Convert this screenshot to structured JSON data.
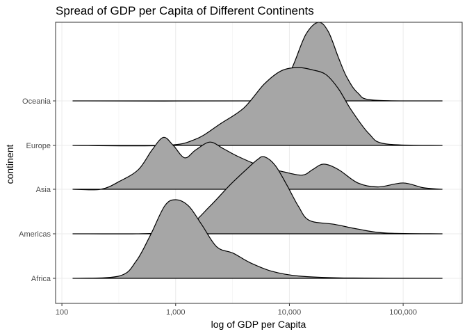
{
  "chart_data": {
    "type": "area",
    "title": "Spread of GDP per Capita of Different Continents",
    "xlabel": "log of GDP per Capita",
    "ylabel": "continent",
    "x_scale": "log10",
    "xlim": [
      88,
      330000
    ],
    "x_ticks": [
      {
        "value": 100,
        "label": "100"
      },
      {
        "value": 1000,
        "label": "1,000"
      },
      {
        "value": 10000,
        "label": "10,000"
      },
      {
        "value": 100000,
        "label": "100,000"
      }
    ],
    "categories": [
      "Africa",
      "Americas",
      "Asia",
      "Europe",
      "Oceania"
    ],
    "grid": true,
    "fill_color": "#a6a6a6",
    "line_color": "#000000",
    "series": [
      {
        "name": "Africa",
        "x": [
          125,
          320,
          450,
          600,
          800,
          1000,
          1300,
          1700,
          2300,
          3200,
          4500,
          7000,
          12000,
          30000,
          220000
        ],
        "density": [
          0.0,
          0.03,
          0.22,
          0.55,
          0.92,
          1.0,
          0.92,
          0.68,
          0.4,
          0.32,
          0.2,
          0.09,
          0.03,
          0.005,
          0.0
        ]
      },
      {
        "name": "Americas",
        "x": [
          125,
          450,
          800,
          1300,
          2000,
          3000,
          4200,
          5200,
          6000,
          7500,
          9500,
          12000,
          15000,
          25000,
          40000,
          70000,
          220000
        ],
        "density": [
          0.0,
          0.0,
          0.02,
          0.1,
          0.35,
          0.62,
          0.82,
          0.94,
          0.98,
          0.87,
          0.62,
          0.35,
          0.17,
          0.12,
          0.06,
          0.01,
          0.0
        ]
      },
      {
        "name": "Asia",
        "x": [
          125,
          220,
          320,
          470,
          620,
          780,
          950,
          1200,
          1500,
          2000,
          2600,
          3500,
          5500,
          9000,
          13000,
          16000,
          20000,
          27000,
          40000,
          60000,
          100000,
          150000,
          220000
        ],
        "density": [
          0.0,
          0.0,
          0.1,
          0.25,
          0.5,
          0.66,
          0.56,
          0.4,
          0.5,
          0.6,
          0.52,
          0.42,
          0.3,
          0.22,
          0.18,
          0.25,
          0.32,
          0.25,
          0.08,
          0.03,
          0.08,
          0.02,
          0.0
        ]
      },
      {
        "name": "Europe",
        "x": [
          125,
          800,
          1500,
          2500,
          4000,
          6000,
          8500,
          12000,
          16000,
          21000,
          27000,
          35000,
          50000,
          70000,
          220000
        ],
        "density": [
          0.0,
          0.0,
          0.08,
          0.28,
          0.48,
          0.78,
          0.95,
          0.99,
          0.96,
          0.9,
          0.72,
          0.45,
          0.15,
          0.02,
          0.0
        ]
      },
      {
        "name": "Oceania",
        "x": [
          125,
          5000,
          7000,
          9000,
          11000,
          14000,
          18000,
          22000,
          27000,
          32000,
          40000,
          55000,
          220000
        ],
        "density": [
          0.0,
          0.0,
          0.03,
          0.2,
          0.48,
          0.85,
          1.0,
          0.88,
          0.55,
          0.3,
          0.1,
          0.01,
          0.0
        ]
      }
    ]
  }
}
